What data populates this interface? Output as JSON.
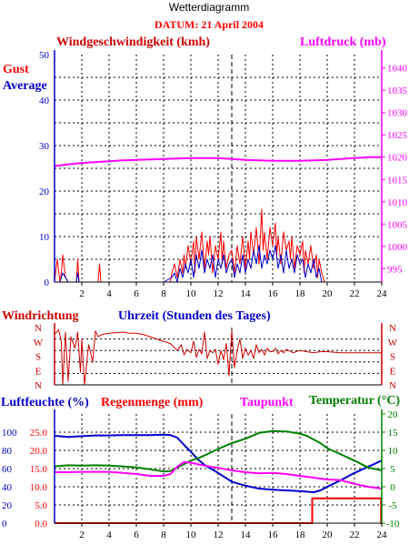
{
  "header": {
    "title": "Wetterdiagramm",
    "date_label": "DATUM: 21 April 2004"
  },
  "colors": {
    "red": "#ff0000",
    "darkred": "#cc0000",
    "blue": "#0000cc",
    "magenta": "#ff00ff",
    "green": "#008000",
    "axis": "#000000"
  },
  "chart_data": [
    {
      "id": "wind",
      "type": "line",
      "ylabel": "Windgeschwindigkeit (kmh)",
      "ylabel_right": "Luftdruck (mb)",
      "xlabel": "Uhrzeit (Stunden des Tages)",
      "xlim": [
        0,
        24
      ],
      "ylim": [
        0,
        50
      ],
      "ylim_right": [
        992,
        1043
      ],
      "x_ticks": [
        2,
        4,
        6,
        8,
        10,
        12,
        14,
        16,
        18,
        20,
        22,
        24
      ],
      "y_ticks": [
        0,
        10,
        20,
        30,
        40,
        50
      ],
      "y_ticks_right": [
        995,
        1000,
        1005,
        1010,
        1015,
        1020,
        1025,
        1030,
        1035,
        1040
      ],
      "grid": true,
      "marker_time": 13,
      "legend_labels": [
        "Gust",
        "Average"
      ],
      "series": [
        {
          "name": "Gust",
          "color": "#ff0000",
          "axis": "left",
          "x": [
            0.0,
            0.2,
            0.4,
            0.5,
            0.6,
            0.8,
            1.0,
            1.2,
            1.4,
            1.6,
            1.7,
            1.8,
            2.0,
            2.2,
            2.5,
            3.0,
            3.2,
            3.3,
            3.4,
            3.6,
            4.0,
            6.0,
            8.0,
            8.5,
            8.6,
            8.8,
            9.0,
            9.2,
            9.4,
            9.5,
            9.6,
            9.8,
            10.0,
            10.2,
            10.3,
            10.4,
            10.6,
            10.8,
            11.0,
            11.2,
            11.3,
            11.4,
            11.6,
            11.8,
            12.0,
            12.2,
            12.3,
            12.4,
            12.6,
            12.8,
            13.0,
            13.2,
            13.4,
            13.6,
            13.8,
            14.0,
            14.2,
            14.3,
            14.4,
            14.6,
            14.8,
            15.0,
            15.2,
            15.3,
            15.4,
            15.6,
            15.8,
            16.0,
            16.2,
            16.3,
            16.4,
            16.6,
            16.8,
            17.0,
            17.2,
            17.3,
            17.4,
            17.6,
            17.8,
            18.0,
            18.2,
            18.3,
            18.4,
            18.6,
            18.8,
            19.0,
            19.2,
            19.3,
            19.4,
            19.6,
            19.8,
            20.0
          ],
          "y": [
            0,
            5,
            0,
            2,
            6,
            1,
            0,
            0,
            0,
            0,
            5,
            0,
            0,
            0,
            0,
            0,
            0,
            4,
            0,
            0,
            0,
            0,
            0,
            0,
            2,
            4,
            1,
            5,
            2,
            6,
            3,
            8,
            4,
            9,
            2,
            10,
            5,
            11,
            3,
            9,
            6,
            10,
            2,
            8,
            5,
            11,
            4,
            9,
            3,
            6,
            7,
            2,
            8,
            4,
            10,
            3,
            9,
            5,
            11,
            6,
            12,
            4,
            16,
            7,
            11,
            5,
            12,
            8,
            13,
            6,
            10,
            4,
            11,
            7,
            9,
            5,
            10,
            3,
            8,
            6,
            9,
            2,
            7,
            4,
            8,
            3,
            6,
            1,
            5,
            2,
            0,
            0
          ]
        },
        {
          "name": "Average",
          "color": "#0000cc",
          "axis": "left",
          "x": [
            0.0,
            0.4,
            0.5,
            0.6,
            1.0,
            1.6,
            1.7,
            1.8,
            2.0,
            4.0,
            8.0,
            8.6,
            8.8,
            9.0,
            9.2,
            9.4,
            9.6,
            9.8,
            10.0,
            10.2,
            10.4,
            10.6,
            10.8,
            11.0,
            11.2,
            11.4,
            11.6,
            11.8,
            12.0,
            12.2,
            12.4,
            12.6,
            12.8,
            13.0,
            13.2,
            13.4,
            13.6,
            13.8,
            14.0,
            14.2,
            14.4,
            14.6,
            14.8,
            15.0,
            15.2,
            15.4,
            15.6,
            15.8,
            16.0,
            16.2,
            16.4,
            16.6,
            16.8,
            17.0,
            17.2,
            17.4,
            17.6,
            17.8,
            18.0,
            18.2,
            18.4,
            18.6,
            18.8,
            19.0,
            19.2,
            19.4,
            19.6,
            19.8,
            20.0
          ],
          "y": [
            0,
            0,
            1,
            2,
            0,
            0,
            2,
            0,
            0,
            0,
            0,
            1,
            2,
            0,
            3,
            1,
            4,
            2,
            5,
            1,
            6,
            3,
            7,
            2,
            5,
            3,
            6,
            1,
            5,
            3,
            6,
            2,
            4,
            5,
            1,
            4,
            2,
            6,
            2,
            5,
            3,
            7,
            4,
            8,
            3,
            6,
            4,
            7,
            5,
            8,
            3,
            6,
            2,
            7,
            3,
            5,
            2,
            6,
            4,
            5,
            1,
            4,
            2,
            5,
            1,
            3,
            0,
            0,
            0
          ]
        },
        {
          "name": "Luftdruck",
          "color": "#ff00ff",
          "axis": "right",
          "x": [
            0,
            1,
            2,
            3,
            4,
            5,
            6,
            7,
            8,
            9,
            10,
            11,
            12,
            13,
            14,
            15,
            16,
            17,
            18,
            19,
            20,
            21,
            22,
            23,
            24
          ],
          "y": [
            1018.0,
            1018.4,
            1018.7,
            1018.9,
            1019.1,
            1019.3,
            1019.4,
            1019.5,
            1019.6,
            1019.7,
            1019.8,
            1019.8,
            1019.8,
            1019.6,
            1019.4,
            1019.3,
            1019.2,
            1019.2,
            1019.2,
            1019.3,
            1019.4,
            1019.6,
            1019.8,
            1020.0,
            1020.0
          ]
        }
      ]
    },
    {
      "id": "direction",
      "type": "line",
      "ylabel": "Windrichtung",
      "xlim": [
        0,
        24
      ],
      "ylim": [
        0,
        5
      ],
      "y_tick_labels_left": [
        "N",
        "E",
        "S",
        "W",
        "N"
      ],
      "y_tick_labels_right": [
        "N",
        "E",
        "S",
        "W",
        "N"
      ],
      "grid": true,
      "marker_time": 13,
      "series": [
        {
          "name": "Windrichtung",
          "color": "#cc0000",
          "x": [
            0.0,
            0.3,
            0.5,
            0.6,
            0.8,
            1.0,
            1.2,
            1.5,
            1.7,
            1.9,
            2.0,
            2.2,
            2.5,
            2.8,
            3.0,
            3.2,
            3.5,
            4.0,
            5.0,
            5.5,
            6.0,
            6.5,
            7.0,
            8.0,
            8.5,
            9.0,
            9.3,
            9.5,
            9.7,
            10.0,
            10.2,
            10.4,
            10.6,
            10.8,
            11.0,
            11.2,
            11.4,
            11.6,
            11.8,
            12.0,
            12.2,
            12.4,
            12.6,
            12.8,
            13.0,
            13.2,
            13.4,
            13.6,
            13.8,
            14.0,
            14.2,
            14.4,
            14.6,
            14.8,
            15.0,
            15.2,
            15.4,
            15.6,
            15.8,
            16.0,
            16.2,
            16.4,
            16.6,
            16.8,
            17.0,
            17.5,
            18.0,
            18.5,
            19.0,
            19.5,
            20.0,
            21.0,
            22.0,
            23.0,
            24.0
          ],
          "y": [
            4.4,
            4.8,
            3.8,
            0.0,
            4.6,
            0.3,
            4.2,
            3.2,
            4.6,
            1.1,
            4.0,
            0.0,
            3.5,
            2.0,
            4.7,
            4.2,
            4.4,
            4.5,
            4.6,
            4.5,
            4.5,
            4.4,
            4.2,
            3.8,
            3.6,
            3.0,
            3.5,
            2.6,
            3.1,
            2.8,
            3.8,
            2.4,
            3.1,
            2.7,
            4.6,
            2.3,
            3.0,
            2.8,
            3.1,
            1.8,
            3.0,
            2.2,
            3.6,
            0.8,
            4.7,
            1.5,
            3.0,
            4.0,
            2.3,
            3.2,
            2.6,
            3.0,
            2.3,
            3.5,
            2.8,
            3.1,
            2.6,
            3.2,
            2.9,
            2.9,
            3.2,
            2.7,
            3.0,
            2.8,
            3.1,
            2.8,
            3.0,
            2.9,
            2.8,
            2.9,
            2.9,
            2.8,
            2.8,
            2.8,
            2.8
          ]
        }
      ]
    },
    {
      "id": "humidity",
      "type": "line",
      "ylabel": "Luftfeuchte (%)",
      "ylabel_mid": "Regenmenge (mm)",
      "ylabel_dew": "Taupunkt",
      "ylabel_right": "Temperatur (°C)",
      "xlim": [
        0,
        24
      ],
      "ylim": [
        -10,
        20
      ],
      "y_ticks_right": [
        -10,
        -5,
        0,
        5,
        10,
        15,
        20
      ],
      "y_ticks_humidity": [
        "0",
        "20",
        "40",
        "60",
        "80",
        "100"
      ],
      "y_ticks_rain": [
        "0.0",
        "5.0",
        "10.0",
        "15.0",
        "20.0",
        "25.0"
      ],
      "x_ticks": [
        2,
        4,
        6,
        8,
        10,
        12,
        14,
        16,
        18,
        20,
        22,
        24
      ],
      "grid": true,
      "marker_time": 13,
      "series": [
        {
          "name": "Luftfeuchte",
          "color": "#0000cc",
          "x": [
            0,
            1,
            2,
            3,
            4,
            5,
            6,
            7,
            8,
            8.5,
            9,
            9.5,
            10,
            10.5,
            11,
            12,
            13,
            14,
            15,
            16,
            17,
            18,
            19,
            19.5,
            20,
            21,
            22,
            23,
            24
          ],
          "y": [
            14.0,
            13.7,
            13.9,
            14.1,
            14.1,
            14.2,
            14.2,
            14.2,
            14.3,
            14.2,
            13.5,
            11.5,
            9.6,
            7.6,
            6.0,
            3.8,
            1.4,
            0.3,
            -0.5,
            -0.8,
            -1.0,
            -1.2,
            -1.5,
            -1.0,
            0.0,
            1.8,
            3.8,
            5.5,
            7.2
          ]
        },
        {
          "name": "Temperatur",
          "color": "#008000",
          "x": [
            0,
            1,
            2,
            3,
            4,
            5,
            6,
            7,
            8,
            8.5,
            9,
            9.5,
            10,
            10.5,
            11,
            12,
            13,
            14,
            15,
            16,
            17,
            18,
            18.5,
            19,
            19.5,
            20,
            21,
            22,
            23,
            24
          ],
          "y": [
            5.6,
            5.9,
            5.8,
            5.9,
            5.8,
            5.6,
            5.3,
            4.8,
            4.2,
            4.3,
            5.3,
            6.2,
            7.2,
            7.8,
            8.6,
            10.4,
            12.0,
            13.2,
            14.8,
            15.3,
            15.2,
            14.6,
            14.0,
            13.0,
            12.0,
            10.6,
            8.9,
            7.2,
            5.3,
            4.5
          ]
        },
        {
          "name": "Taupunkt",
          "color": "#ff00ff",
          "x": [
            0,
            1,
            2,
            3,
            4,
            5,
            6,
            7,
            8,
            8.5,
            9,
            9.5,
            10,
            10.5,
            11,
            12,
            13,
            14,
            15,
            16,
            17,
            18,
            19,
            20,
            21,
            22,
            23,
            24
          ],
          "y": [
            4.0,
            4.0,
            4.1,
            4.1,
            4.1,
            3.8,
            3.5,
            3.0,
            3.0,
            3.5,
            5.5,
            6.8,
            6.6,
            6.2,
            5.8,
            5.2,
            4.5,
            4.0,
            3.7,
            3.8,
            3.5,
            3.0,
            2.5,
            2.0,
            1.8,
            0.8,
            0.0,
            -0.5
          ]
        },
        {
          "name": "Regenmenge",
          "color": "#ff0000",
          "x": [
            0,
            18.9,
            18.9,
            23.95,
            23.95,
            24
          ],
          "y": [
            -10,
            -10,
            -3.2,
            -3.2,
            -10,
            -10
          ]
        }
      ]
    }
  ]
}
